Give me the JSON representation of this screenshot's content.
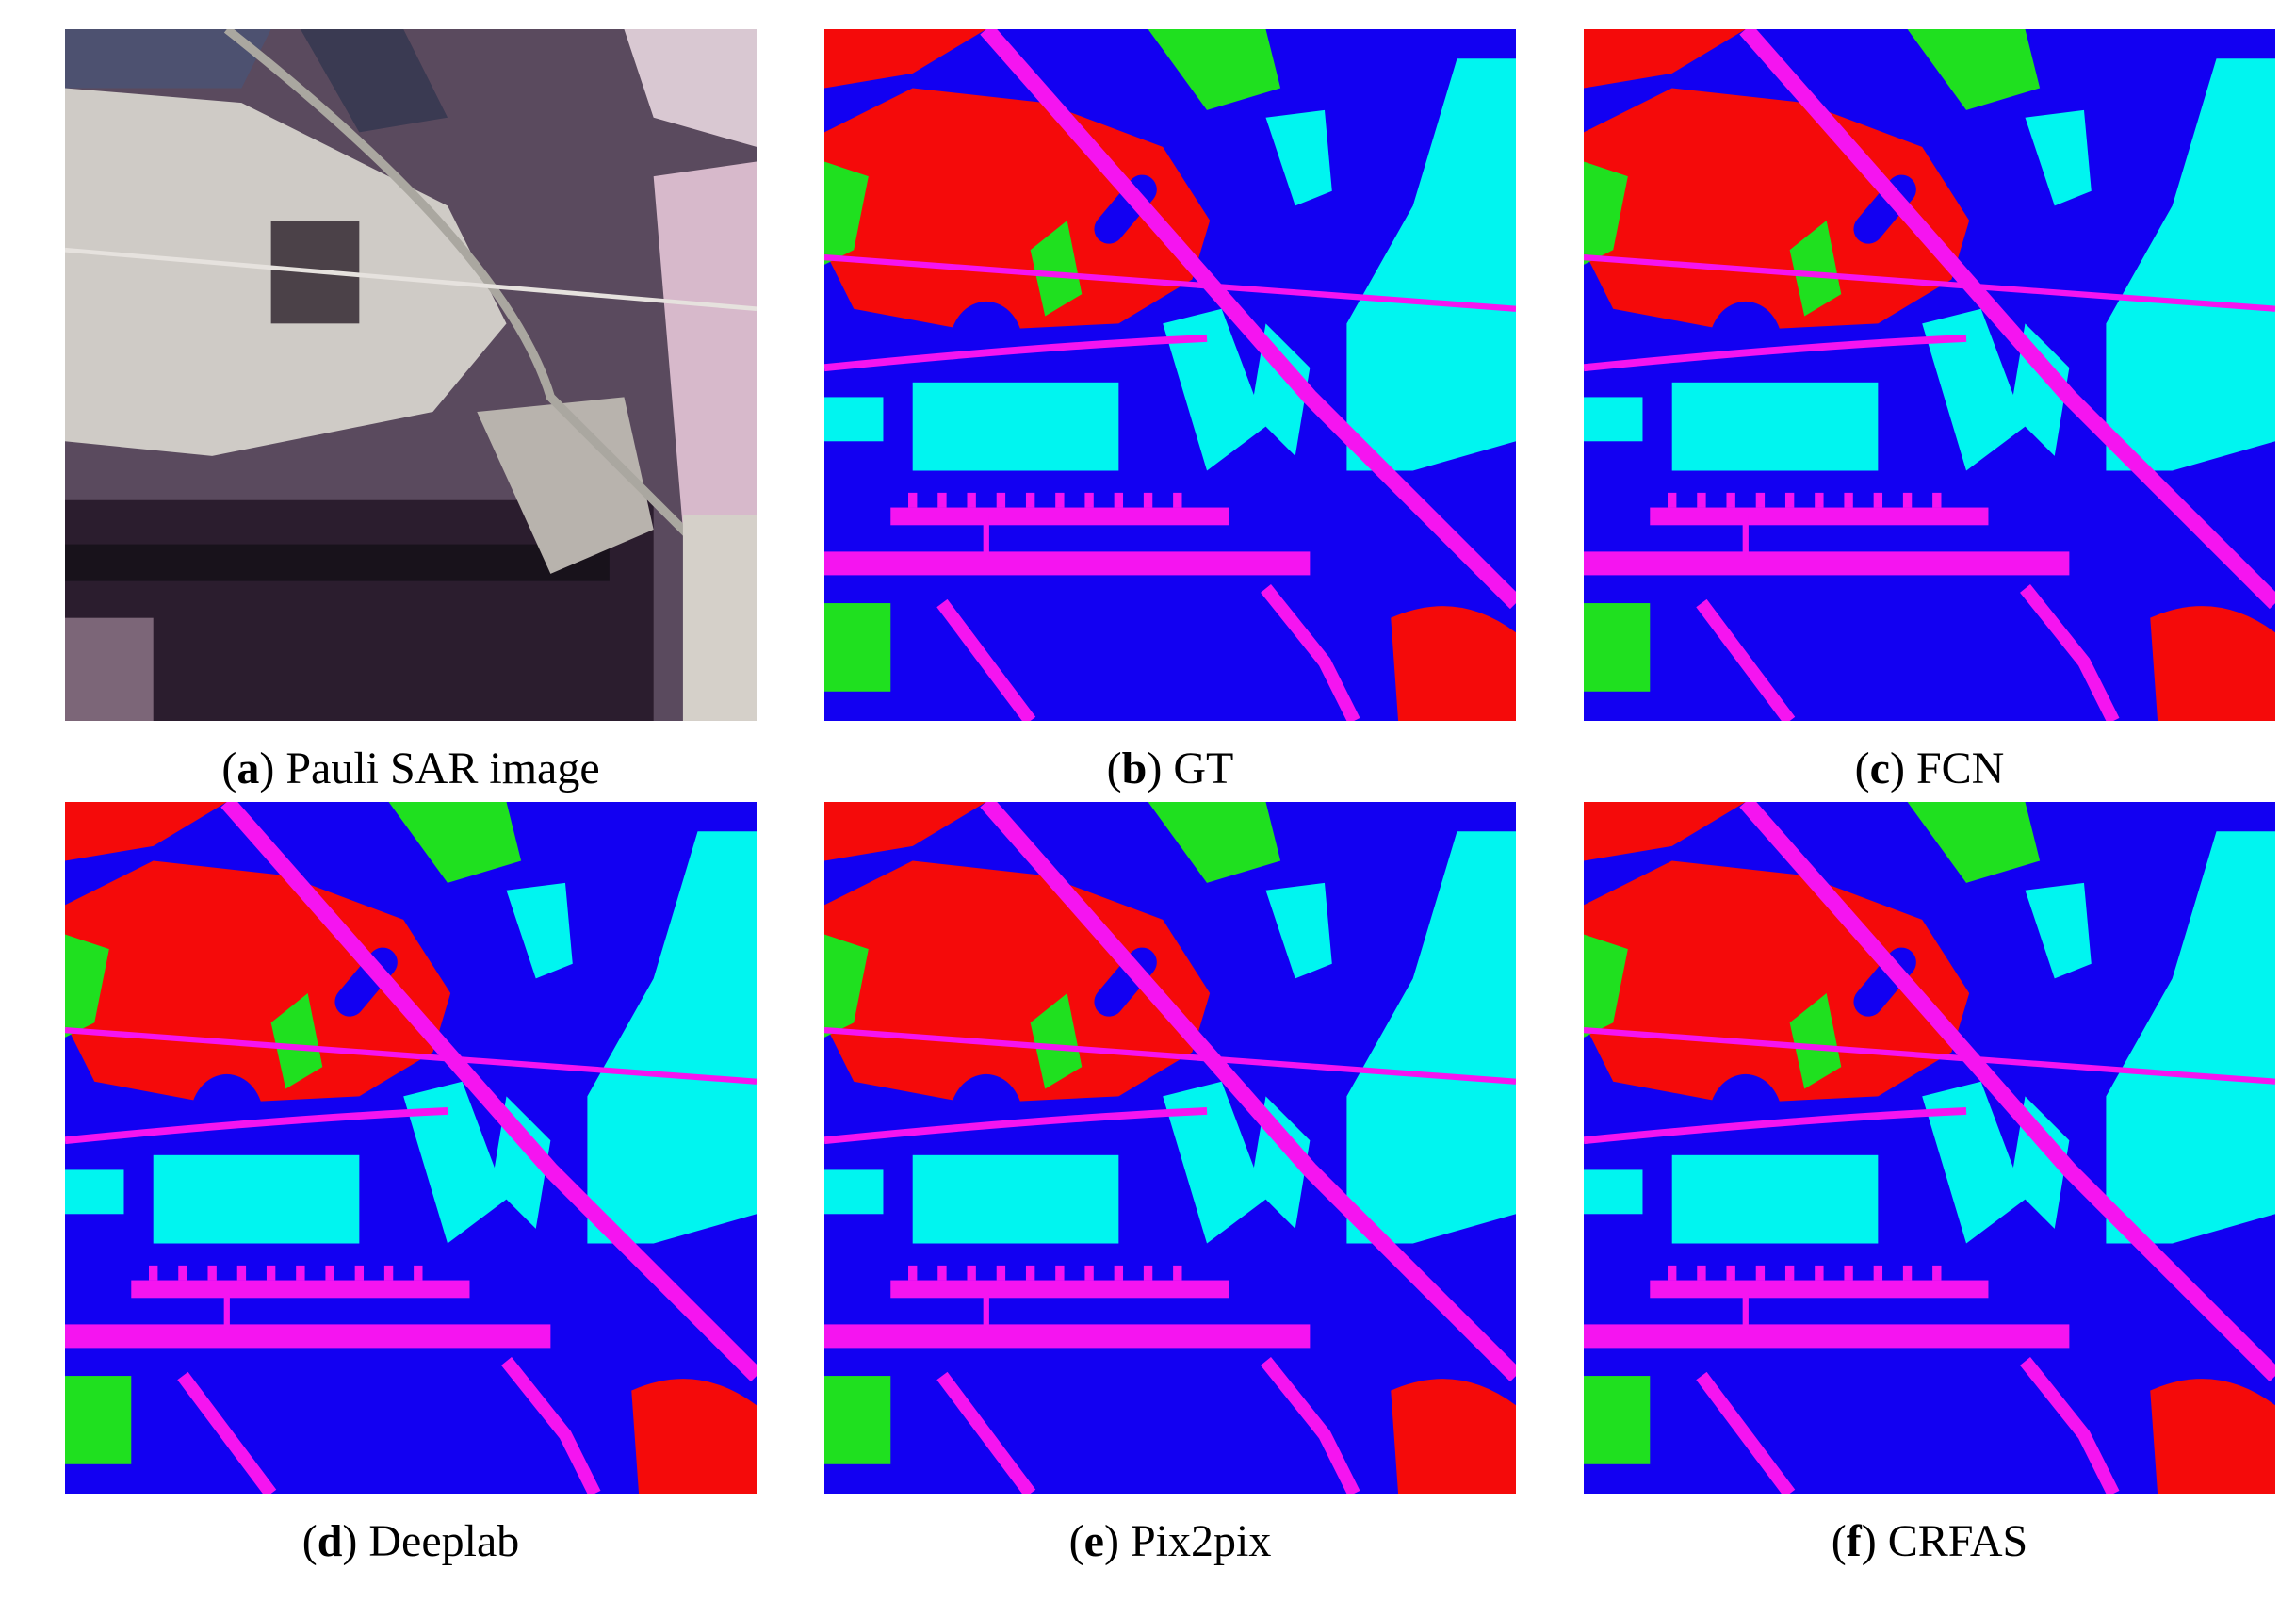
{
  "panels": [
    {
      "open": "(",
      "letter": "a",
      "rest": ") Pauli SAR image"
    },
    {
      "open": "(",
      "letter": "b",
      "rest": ") GT"
    },
    {
      "open": "(",
      "letter": "c",
      "rest": ") FCN"
    },
    {
      "open": "(",
      "letter": "d",
      "rest": ") Deeplab"
    },
    {
      "open": "(",
      "letter": "e",
      "rest": ") Pix2pix"
    },
    {
      "open": "(",
      "letter": "f",
      "rest": ") CRFAS"
    }
  ]
}
